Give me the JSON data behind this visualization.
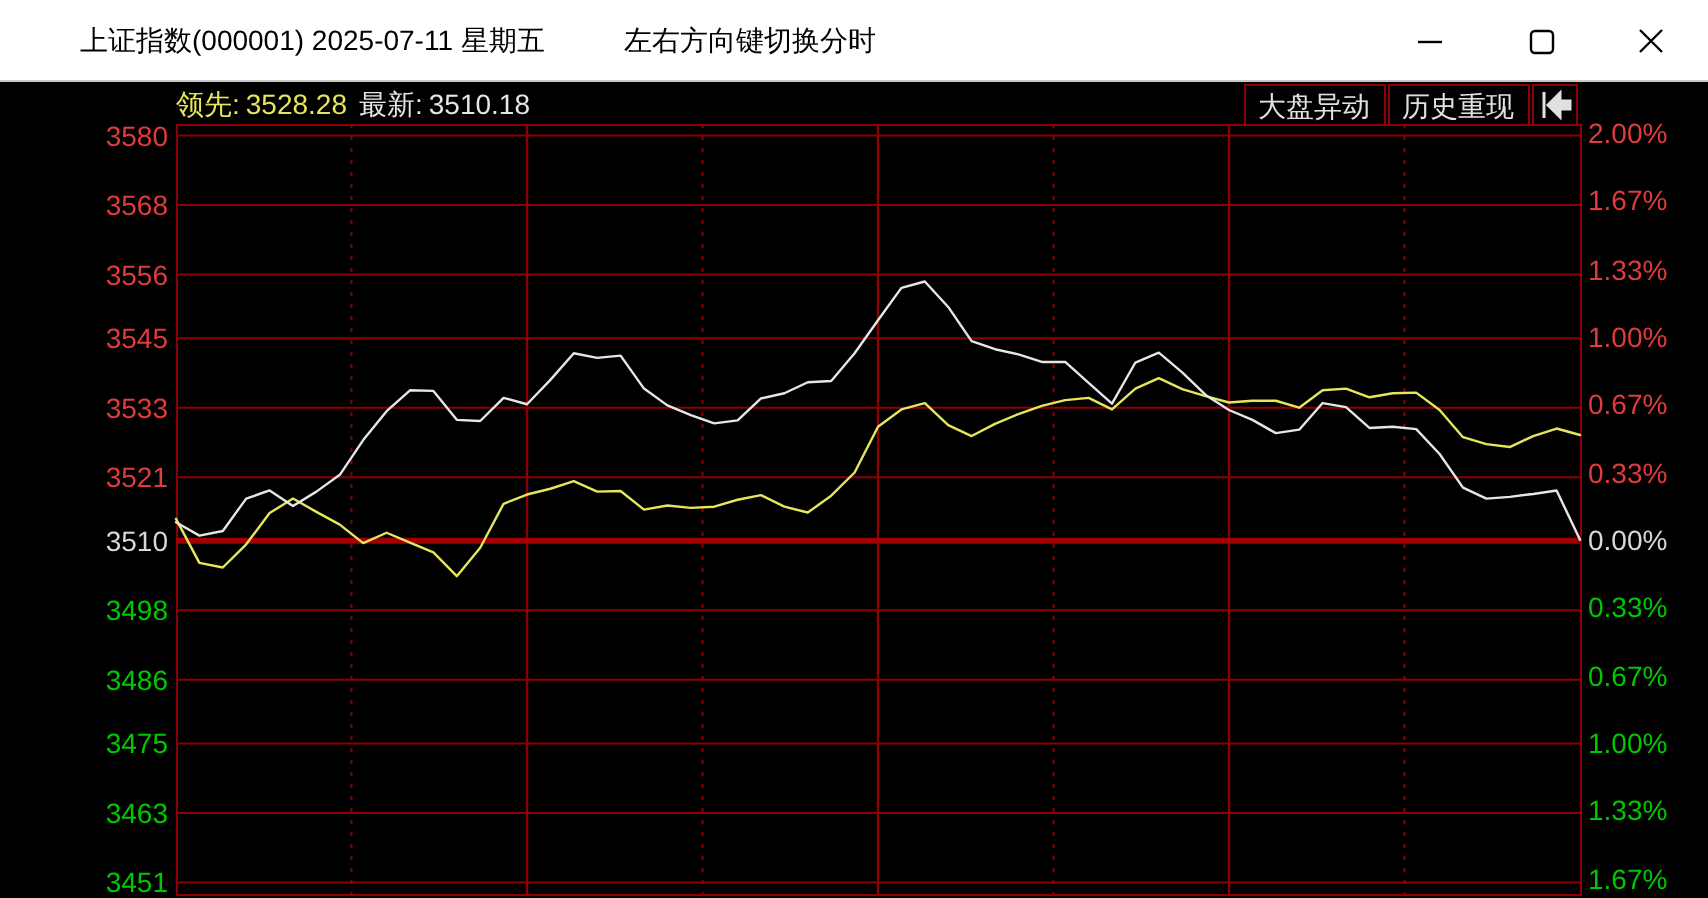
{
  "chart_data": {
    "type": "line",
    "title": "上证指数(000001) 2025-07-11 星期五",
    "subtitle": "左右方向键切换分时",
    "annotations": [
      "3528.28",
      "3510.18",
      "大盘异动",
      "历史重现"
    ],
    "categories": [
      null,
      null,
      null,
      null,
      null,
      null,
      null,
      null,
      null,
      null,
      null,
      null,
      null,
      null,
      null,
      null,
      null,
      null,
      null,
      null,
      null,
      null,
      null,
      null,
      null,
      null,
      null,
      null,
      null,
      null,
      null,
      null,
      null,
      null,
      null,
      null,
      null,
      null,
      null,
      null,
      null,
      null,
      null,
      null,
      null,
      null,
      null,
      null,
      null,
      null,
      null,
      null,
      null,
      null,
      null,
      null,
      null,
      null,
      null,
      null,
      null
    ],
    "ylim": [
      3449,
      3582
    ],
    "yticks": [
      3451,
      3463,
      3475,
      3486,
      3498,
      3510,
      3521,
      3533,
      3545,
      3556,
      3568,
      3580
    ],
    "y2lim": [
      -1.743,
      2.046
    ],
    "y2ticks": [
      {
        "value": -1.67,
        "label": "1.67%"
      },
      {
        "value": -1.33,
        "label": "1.33%"
      },
      {
        "value": -1.0,
        "label": "1.00%"
      },
      {
        "value": -0.67,
        "label": "0.67%"
      },
      {
        "value": -0.33,
        "label": "0.33%"
      },
      {
        "value": 0,
        "label": "0.00%"
      },
      {
        "value": 0.33,
        "label": "0.33%"
      },
      {
        "value": 0.67,
        "label": "0.67%"
      },
      {
        "value": 1.0,
        "label": "1.00%"
      },
      {
        "value": 1.33,
        "label": "1.33%"
      },
      {
        "value": 1.67,
        "label": "1.67%"
      },
      {
        "value": 2.0,
        "label": "2.00%"
      }
    ],
    "ref_lines": [
      {
        "axis": "y",
        "value": 3510,
        "color": "#a00000"
      }
    ],
    "grid": true,
    "series": [
      {
        "name": "领先:",
        "color": "#e6e65a",
        "values": [
          3513.8,
          3506.2,
          3505.4,
          3509.4,
          3514.8,
          3517.3,
          3515.0,
          3512.8,
          3509.6,
          3511.4,
          3509.7,
          3508.0,
          3503.9,
          3508.8,
          3516.4,
          3518.0,
          3519.0,
          3520.3,
          3518.5,
          3518.6,
          3515.4,
          3516.1,
          3515.7,
          3515.9,
          3517.1,
          3517.9,
          3515.9,
          3514.9,
          3517.8,
          3521.8,
          3529.7,
          3532.7,
          3533.8,
          3530.0,
          3528.1,
          3530.2,
          3531.9,
          3533.3,
          3534.3,
          3534.7,
          3532.7,
          3536.3,
          3538.1,
          3536.2,
          3535.0,
          3533.9,
          3534.2,
          3534.2,
          3533.0,
          3536.0,
          3536.3,
          3534.8,
          3535.5,
          3535.6,
          3532.6,
          3527.9,
          3526.7,
          3526.2,
          3528.1,
          3529.4,
          3528.28
        ]
      },
      {
        "name": "最新:",
        "color": "#e6e6e6",
        "values": [
          3513.2,
          3510.9,
          3511.7,
          3517.3,
          3518.7,
          3516.0,
          3518.5,
          3521.4,
          3527.4,
          3532.4,
          3536.0,
          3535.9,
          3530.9,
          3530.7,
          3534.7,
          3533.6,
          3537.8,
          3542.4,
          3541.6,
          3542.0,
          3536.3,
          3533.4,
          3531.7,
          3530.3,
          3530.8,
          3534.6,
          3535.5,
          3537.4,
          3537.6,
          3542.4,
          3548.1,
          3553.7,
          3554.8,
          3550.4,
          3544.5,
          3543.1,
          3542.2,
          3540.9,
          3540.9,
          3537.3,
          3533.7,
          3540.8,
          3542.5,
          3539.1,
          3535.2,
          3532.6,
          3530.9,
          3528.6,
          3529.2,
          3533.8,
          3533.1,
          3529.5,
          3529.7,
          3529.3,
          3525.0,
          3519.2,
          3517.3,
          3517.6,
          3518.1,
          3518.7,
          3510.18
        ]
      }
    ]
  }
}
